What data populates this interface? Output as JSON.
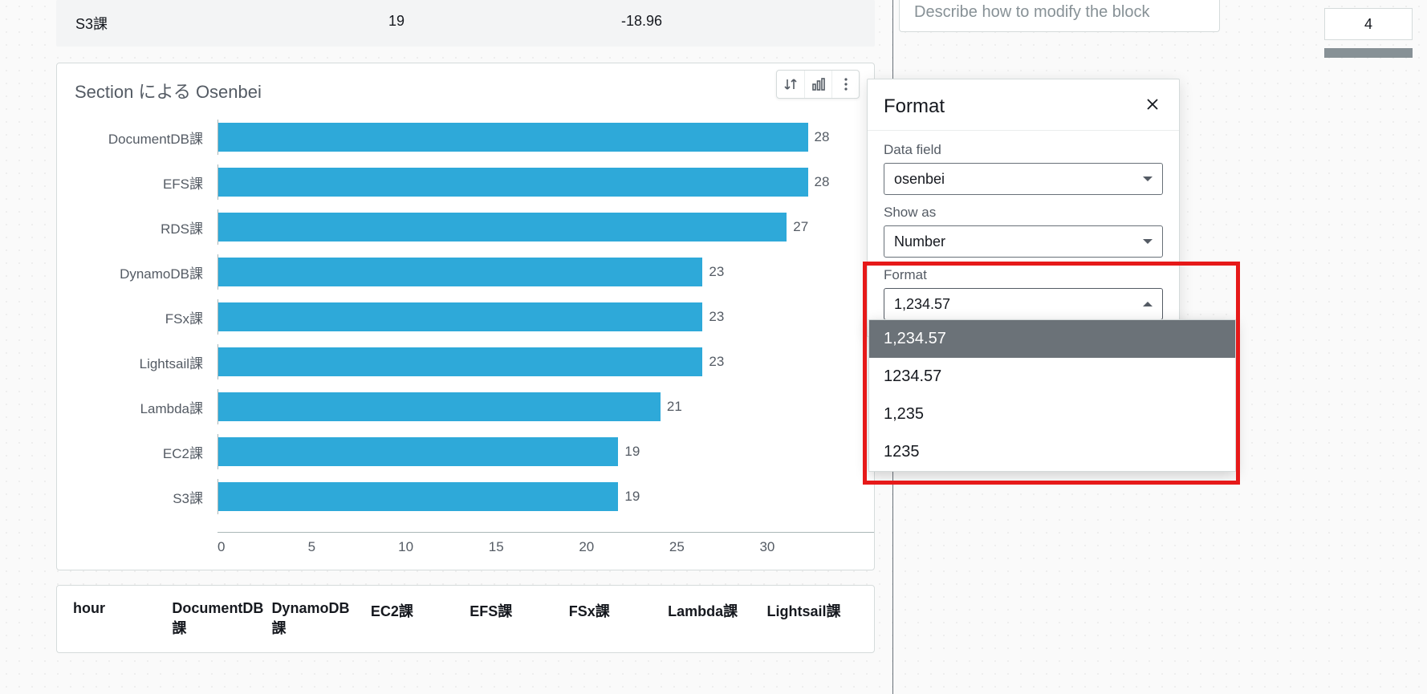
{
  "table_row": {
    "col1": "S3課",
    "col2": "19",
    "col3": "-18.96"
  },
  "chart": {
    "title": "Section による Osenbei",
    "type": "bar-horizontal",
    "bar_color": "#2ea9d9",
    "xmax": 30,
    "bars": [
      {
        "label": "DocumentDB課",
        "value": 28
      },
      {
        "label": "EFS課",
        "value": 28
      },
      {
        "label": "RDS課",
        "value": 27
      },
      {
        "label": "DynamoDB課",
        "value": 23
      },
      {
        "label": "FSx課",
        "value": 23
      },
      {
        "label": "Lightsail課",
        "value": 23
      },
      {
        "label": "Lambda課",
        "value": 21
      },
      {
        "label": "EC2課",
        "value": 19
      },
      {
        "label": "S3課",
        "value": 19
      }
    ],
    "xticks": [
      "0",
      "5",
      "10",
      "15",
      "20",
      "25",
      "30"
    ]
  },
  "bottom_columns": [
    "hour",
    "DocumentDB課",
    "DynamoDB課",
    "EC2課",
    "EFS課",
    "FSx課",
    "Lambda課",
    "Lightsail課"
  ],
  "hint_text": "Describe how to modify the block",
  "side_badge": "4",
  "format_panel": {
    "title": "Format",
    "data_field_label": "Data field",
    "data_field_value": "osenbei",
    "show_as_label": "Show as",
    "show_as_value": "Number",
    "format_label": "Format",
    "format_value": "1,234.57",
    "options": [
      "1,234.57",
      "1234.57",
      "1,235",
      "1235"
    ]
  },
  "colors": {
    "bar": "#2ea9d9",
    "axis": "#aab7b8",
    "text_muted": "#545b64",
    "highlight": "#e61919",
    "dropdown_selected_bg": "#6b7278"
  }
}
